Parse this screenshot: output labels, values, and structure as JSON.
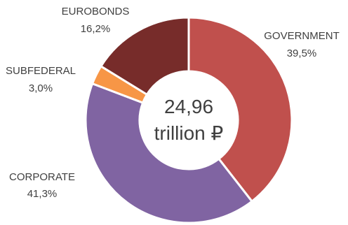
{
  "chart_data": {
    "type": "pie",
    "variant": "donut",
    "center_value": "24,96",
    "center_unit": "trillion ₽",
    "slices": [
      {
        "label": "GOVERNMENT",
        "value": 39.5,
        "value_label": "39,5%",
        "color": "#C0504D"
      },
      {
        "label": "CORPORATE",
        "value": 41.3,
        "value_label": "41,3%",
        "color": "#8064A2"
      },
      {
        "label": "SUBFEDERAL",
        "value": 3.0,
        "value_label": "3,0%",
        "color": "#F79646"
      },
      {
        "label": "EUROBONDS",
        "value": 16.2,
        "value_label": "16,2%",
        "color": "#772C2A"
      }
    ],
    "legend": "none",
    "data_labels": "outside"
  }
}
